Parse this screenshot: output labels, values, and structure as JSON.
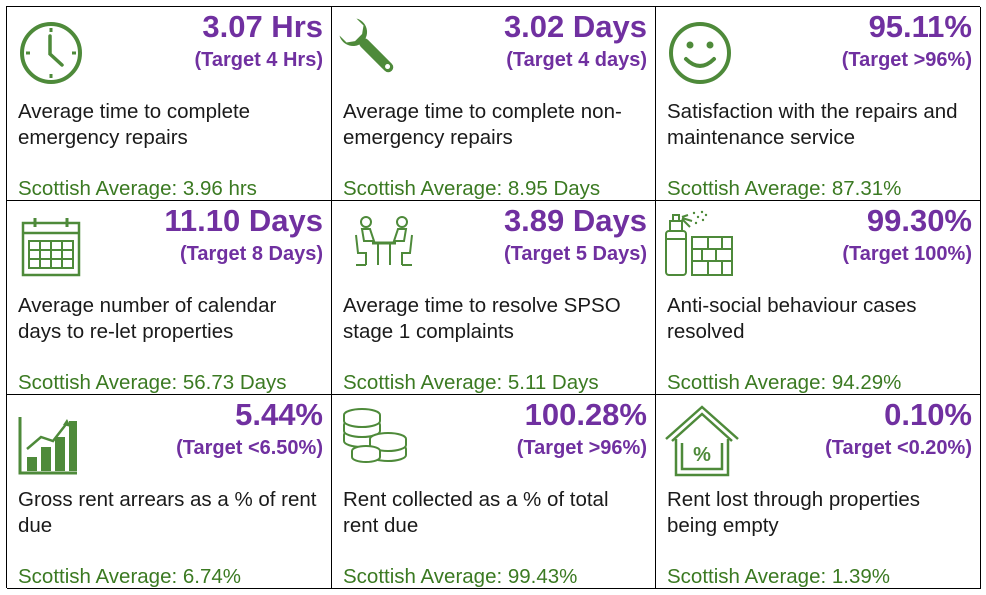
{
  "colors": {
    "value": "#7030a0",
    "average": "#3b7a22",
    "icon": "#4e8a3a",
    "border": "#000000"
  },
  "cells": [
    {
      "icon": "clock-icon",
      "value": "3.07 Hrs",
      "target": "(Target 4 Hrs)",
      "description": "Average time to complete emergency repairs",
      "average": "Scottish Average: 3.96 hrs"
    },
    {
      "icon": "wrench-icon",
      "value": "3.02 Days",
      "target": "(Target 4 days)",
      "description": "Average time to complete non-emergency repairs",
      "average": "Scottish Average: 8.95 Days"
    },
    {
      "icon": "smiley-icon",
      "value": "95.11%",
      "target": "(Target >96%)",
      "description": "Satisfaction with the repairs and maintenance service",
      "average": "Scottish Average: 87.31%"
    },
    {
      "icon": "calendar-icon",
      "value": "11.10 Days",
      "target": "(Target 8 Days)",
      "description": "Average number of calendar days to re-let properties",
      "average": "Scottish Average: 56.73 Days"
    },
    {
      "icon": "meeting-table-icon",
      "value": "3.89 Days",
      "target": "(Target 5 Days)",
      "description": "Average time to resolve SPSO stage 1 complaints",
      "average": "Scottish Average: 5.11 Days"
    },
    {
      "icon": "spray-can-wall-icon",
      "value": "99.30%",
      "target": "(Target 100%)",
      "description": "Anti-social behaviour cases resolved",
      "average": "Scottish Average: 94.29%"
    },
    {
      "icon": "bar-chart-icon",
      "value": "5.44%",
      "target": "(Target <6.50%)",
      "description": "Gross rent arrears as a % of rent due",
      "average": "Scottish Average: 6.74%"
    },
    {
      "icon": "coins-icon",
      "value": "100.28%",
      "target": "(Target >96%)",
      "description": "Rent collected as a % of total rent due",
      "average": "Scottish Average: 99.43%"
    },
    {
      "icon": "house-percent-icon",
      "value": "0.10%",
      "target": "(Target <0.20%)",
      "description": "Rent lost through properties being empty",
      "average": "Scottish Average: 1.39%"
    }
  ]
}
